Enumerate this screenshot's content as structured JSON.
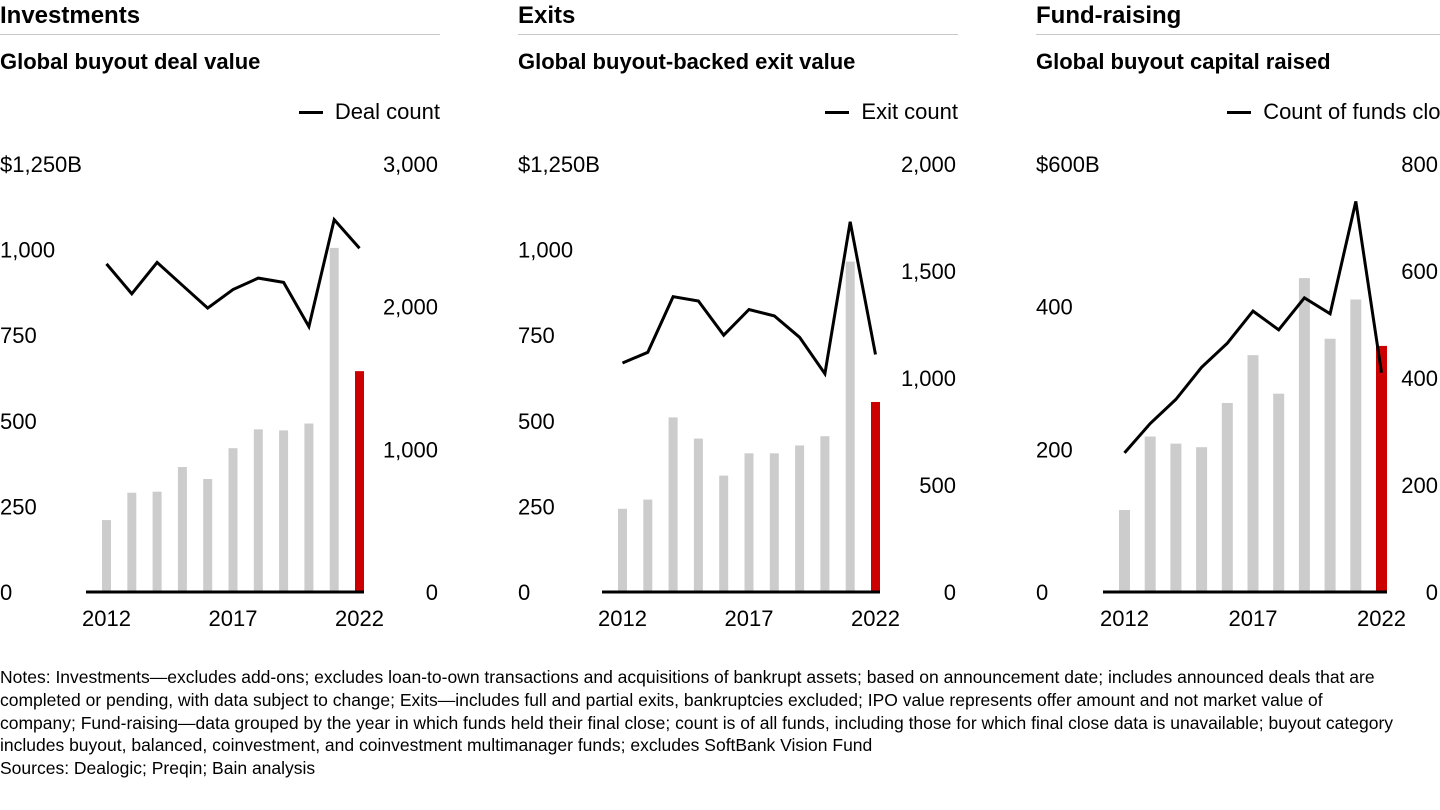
{
  "panels": [
    {
      "section": "Investments",
      "subtitle": "Global buyout deal value",
      "legend": "Deal count"
    },
    {
      "section": "Exits",
      "subtitle": "Global buyout-backed exit value",
      "legend": "Exit count"
    },
    {
      "section": "Fund-raising",
      "subtitle": "Global buyout capital raised",
      "legend": "Count of funds closed"
    }
  ],
  "notes": "Notes: Investments—excludes add-ons; excludes loan-to-own transactions and acquisitions of bankrupt assets; based on announcement date; includes announced deals that are completed or pending, with data subject to change; Exits—includes full and partial exits, bankruptcies excluded; IPO value represents offer amount and not market value of company; Fund-raising—data grouped by the year in which funds held their final close; count is of all funds, including those for which final close data is unavailable; buyout category includes buyout, balanced, coinvestment, and coinvestment multimanager funds; excludes SoftBank Vision Fund\nSources: Dealogic; Preqin; Bain analysis",
  "colors": {
    "bar": "#cccccc",
    "highlight": "#cc0000",
    "line": "#000000"
  },
  "chart_data": [
    {
      "type": "bar",
      "title": "Global buyout deal value",
      "categories": [
        2012,
        2013,
        2014,
        2015,
        2016,
        2017,
        2018,
        2019,
        2020,
        2021,
        2022
      ],
      "x_tick_labels": [
        "2012",
        "2017",
        "2022"
      ],
      "series": [
        {
          "name": "",
          "axis": "left",
          "type": "bar",
          "values": [
            210,
            290,
            293,
            365,
            330,
            420,
            475,
            472,
            492,
            1005,
            645
          ],
          "highlight_last": true
        },
        {
          "name": "Deal count",
          "axis": "right",
          "type": "line",
          "values": [
            2300,
            2090,
            2310,
            2150,
            1990,
            2120,
            2200,
            2170,
            1860,
            2610,
            2410
          ]
        }
      ],
      "y_left": {
        "range": [
          0,
          1250
        ],
        "ticks": [
          0,
          250,
          500,
          750,
          1000,
          1250
        ],
        "tick_labels": [
          "0",
          "250",
          "500",
          "750",
          "1,000",
          "$1,250B"
        ]
      },
      "y_right": {
        "range": [
          0,
          3000
        ],
        "ticks": [
          0,
          1000,
          2000,
          3000
        ],
        "tick_labels": [
          "0",
          "1,000",
          "2,000",
          "3,000"
        ]
      }
    },
    {
      "type": "bar",
      "title": "Global buyout-backed exit value",
      "categories": [
        2012,
        2013,
        2014,
        2015,
        2016,
        2017,
        2018,
        2019,
        2020,
        2021,
        2022
      ],
      "x_tick_labels": [
        "2012",
        "2017",
        "2022"
      ],
      "series": [
        {
          "name": "",
          "axis": "left",
          "type": "bar",
          "values": [
            243,
            270,
            510,
            448,
            340,
            405,
            405,
            428,
            455,
            965,
            555
          ],
          "highlight_last": true
        },
        {
          "name": "Exit count",
          "axis": "right",
          "type": "line",
          "values": [
            1070,
            1120,
            1380,
            1360,
            1200,
            1320,
            1290,
            1190,
            1020,
            1730,
            1110
          ]
        }
      ],
      "y_left": {
        "range": [
          0,
          1250
        ],
        "ticks": [
          0,
          250,
          500,
          750,
          1000,
          1250
        ],
        "tick_labels": [
          "0",
          "250",
          "500",
          "750",
          "1,000",
          "$1,250B"
        ]
      },
      "y_right": {
        "range": [
          0,
          2000
        ],
        "ticks": [
          0,
          500,
          1000,
          1500,
          2000
        ],
        "tick_labels": [
          "0",
          "500",
          "1,000",
          "1,500",
          "2,000"
        ]
      }
    },
    {
      "type": "bar",
      "title": "Global buyout capital raised",
      "categories": [
        2012,
        2013,
        2014,
        2015,
        2016,
        2017,
        2018,
        2019,
        2020,
        2021,
        2022
      ],
      "x_tick_labels": [
        "2012",
        "2017",
        "2022"
      ],
      "series": [
        {
          "name": "",
          "axis": "left",
          "type": "bar",
          "values": [
            115,
            218,
            208,
            203,
            265,
            332,
            278,
            440,
            355,
            410,
            345
          ],
          "highlight_last": true
        },
        {
          "name": "Count of funds closed",
          "axis": "right",
          "type": "line",
          "values": [
            260,
            315,
            360,
            420,
            465,
            525,
            490,
            550,
            520,
            730,
            410
          ]
        }
      ],
      "y_left": {
        "range": [
          0,
          600
        ],
        "ticks": [
          0,
          200,
          400,
          600
        ],
        "tick_labels": [
          "0",
          "200",
          "400",
          "$600B"
        ]
      },
      "y_right": {
        "range": [
          0,
          800
        ],
        "ticks": [
          0,
          200,
          400,
          600,
          800
        ],
        "tick_labels": [
          "0",
          "200",
          "400",
          "600",
          "800"
        ]
      }
    }
  ]
}
